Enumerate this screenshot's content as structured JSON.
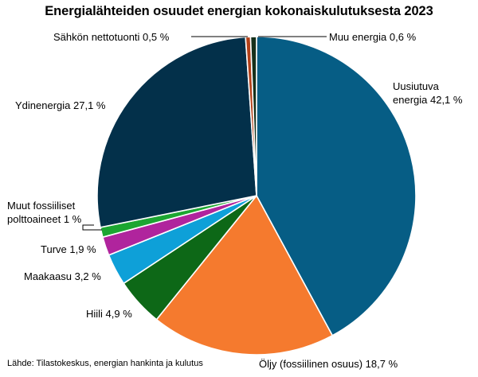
{
  "chart_data": {
    "type": "pie",
    "title": "Energialähteiden osuudet energian kokonaiskulutuksesta 2023",
    "source": "Lähde: Tilastokeskus, energian hankinta ja kulutus",
    "slices": [
      {
        "label": "Uusiutuva energia 42,1 %",
        "lines": [
          "Uusiutuva",
          "energia 42,1 %"
        ],
        "value": 42.1,
        "color": "#065d85"
      },
      {
        "label": "Öljy (fossiilinen osuus) 18,7 %",
        "lines": [
          "Öljy (fossiilinen osuus) 18,7 %"
        ],
        "value": 18.7,
        "color": "#f57a2e"
      },
      {
        "label": "Hiili 4,9 %",
        "lines": [
          "Hiili 4,9 %"
        ],
        "value": 4.9,
        "color": "#0d6817"
      },
      {
        "label": "Maakaasu 3,2 %",
        "lines": [
          "Maakaasu 3,2 %"
        ],
        "value": 3.2,
        "color": "#0ea0d8"
      },
      {
        "label": "Turve 1,9 %",
        "lines": [
          "Turve 1,9 %"
        ],
        "value": 1.9,
        "color": "#b0249d"
      },
      {
        "label": "Muut fossiiliset polttoaineet 1 %",
        "lines": [
          "Muut fossiiliset",
          "polttoaineet 1 %"
        ],
        "value": 1.0,
        "color": "#1ca631"
      },
      {
        "label": "Ydinenergia 27,1 %",
        "lines": [
          "Ydinenergia 27,1 %"
        ],
        "value": 27.1,
        "color": "#03304a"
      },
      {
        "label": "Sähkön nettotuonti 0,5 %",
        "lines": [
          "Sähkön nettotuonti 0,5 %"
        ],
        "value": 0.5,
        "color": "#b24018"
      },
      {
        "label": "Muu energia 0,6 %",
        "lines": [
          "Muu energia 0,6 %"
        ],
        "value": 0.6,
        "color": "#16301a"
      }
    ]
  }
}
